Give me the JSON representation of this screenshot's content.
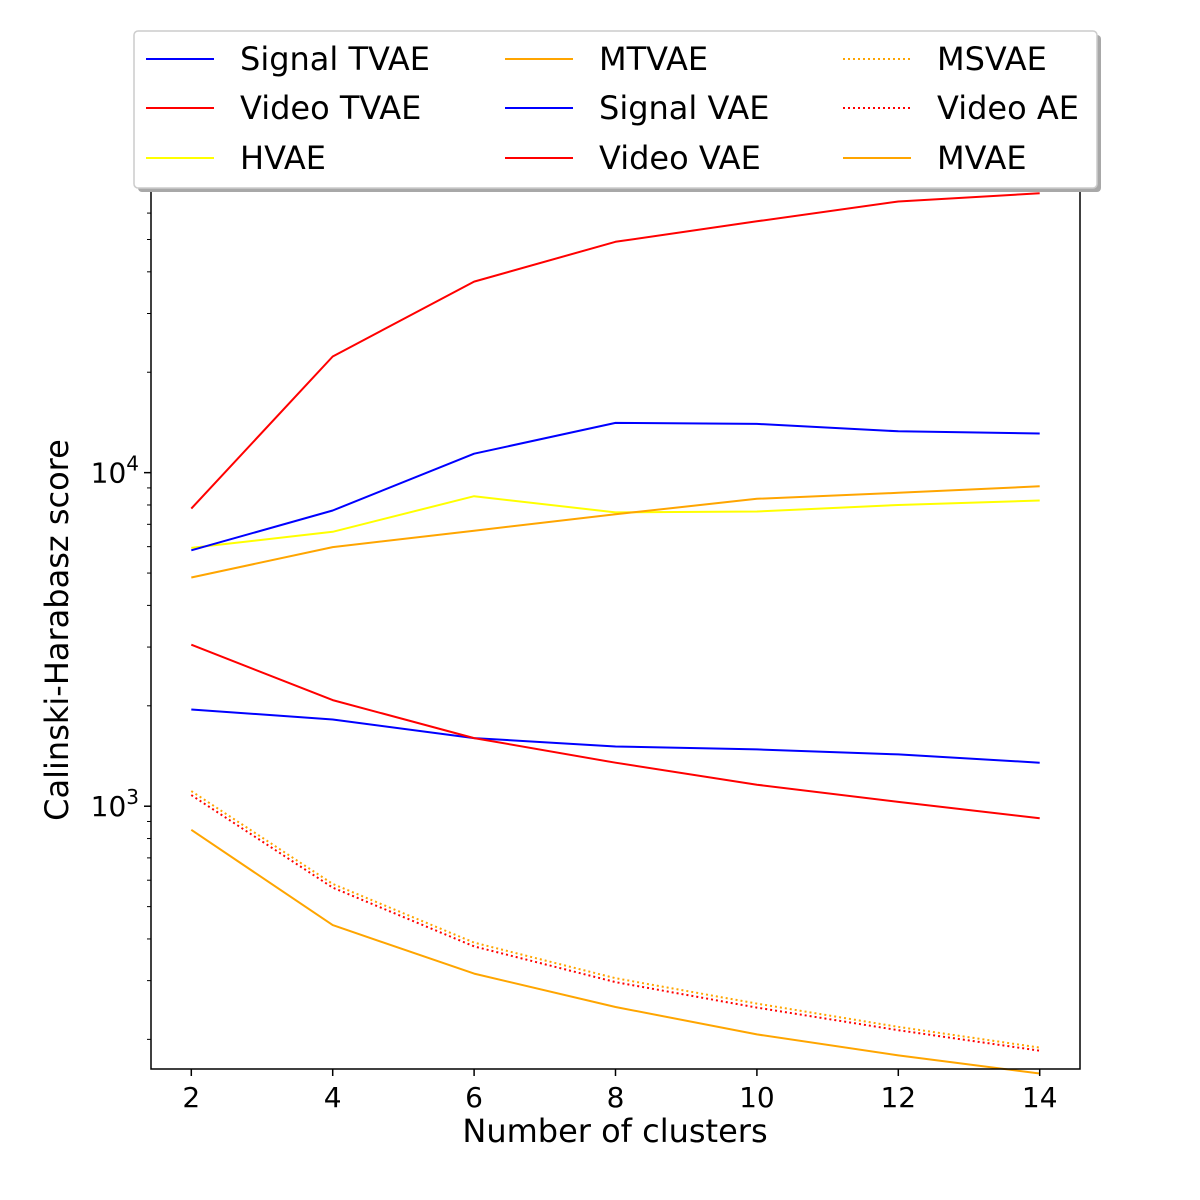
{
  "chart_data": {
    "type": "line",
    "xlabel": "Number of clusters",
    "ylabel": "Calinski-Harabasz score",
    "yscale": "log",
    "xlim": [
      1.43,
      14.57
    ],
    "ylim": [
      163,
      96000
    ],
    "x": [
      2,
      4,
      6,
      8,
      10,
      12,
      14
    ],
    "xticks": [
      2,
      4,
      6,
      8,
      10,
      12,
      14
    ],
    "xtick_labels": [
      "2",
      "4",
      "6",
      "8",
      "10",
      "12",
      "14"
    ],
    "yticks": [
      1000,
      10000
    ],
    "ytick_labels": [
      {
        "base": "10",
        "exp": "3"
      },
      {
        "base": "10",
        "exp": "4"
      }
    ],
    "grid": false,
    "legend_placement": "top-center",
    "legend_columns": 3,
    "series": [
      {
        "name": "Signal TVAE",
        "color": "#0000ff",
        "style": "solid",
        "values": [
          1950,
          1820,
          1600,
          1510,
          1480,
          1430,
          1350
        ]
      },
      {
        "name": "Video TVAE",
        "color": "#ff0000",
        "style": "solid",
        "values": [
          3050,
          2080,
          1600,
          1350,
          1160,
          1030,
          920
        ]
      },
      {
        "name": "HVAE",
        "color": "#ffff00",
        "style": "solid",
        "values": [
          5950,
          6650,
          8500,
          7600,
          7650,
          8000,
          8250
        ]
      },
      {
        "name": "MTVAE",
        "color": "#ffa500",
        "style": "solid",
        "values": [
          850,
          440,
          315,
          250,
          207,
          179,
          158
        ]
      },
      {
        "name": "Signal VAE",
        "color": "#0000ff",
        "style": "solid",
        "values": [
          5850,
          7700,
          11400,
          14100,
          14000,
          13300,
          13100
        ]
      },
      {
        "name": "Video VAE",
        "color": "#ff0000",
        "style": "solid",
        "values": [
          7800,
          22300,
          37400,
          49200,
          56700,
          65000,
          68800
        ]
      },
      {
        "name": "MSVAE",
        "color": "#ffa500",
        "style": "dotted",
        "values": [
          1110,
          585,
          390,
          305,
          256,
          218,
          189
        ]
      },
      {
        "name": "Video AE",
        "color": "#ff0000",
        "style": "dotted",
        "values": [
          1080,
          570,
          380,
          297,
          249,
          213,
          185
        ]
      },
      {
        "name": "MVAE",
        "color": "#ffa500",
        "style": "solid",
        "values": [
          4850,
          5980,
          6700,
          7500,
          8350,
          8700,
          9100
        ]
      }
    ]
  }
}
